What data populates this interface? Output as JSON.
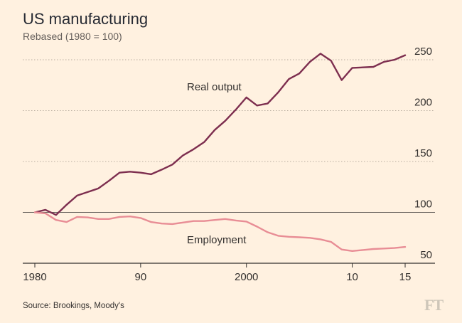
{
  "title": "US manufacturing",
  "subtitle": "Rebased (1980 = 100)",
  "source": "Source: Brookings, Moody's",
  "logo": "FT",
  "colors": {
    "background": "#fff1e0",
    "real_output": "#7d2e4f",
    "employment": "#e88d95",
    "grid": "#b8ad9f",
    "baseline": "#66605c"
  },
  "chart_data": {
    "type": "line",
    "title": "US manufacturing",
    "subtitle": "Rebased (1980 = 100)",
    "xlabel": "",
    "ylabel": "",
    "xlim": [
      1980,
      2015
    ],
    "ylim": [
      50,
      265
    ],
    "yticks": [
      50,
      100,
      150,
      200,
      250
    ],
    "ytick_labels": [
      "50",
      "100",
      "150",
      "200",
      "250"
    ],
    "xticks": [
      1980,
      1990,
      2000,
      2010,
      2015
    ],
    "xtick_labels": [
      "1980",
      "90",
      "2000",
      "10",
      "15"
    ],
    "grid": true,
    "series": [
      {
        "name": "Real output",
        "x": [
          1980,
          1981,
          1982,
          1983,
          1984,
          1985,
          1986,
          1987,
          1988,
          1989,
          1990,
          1991,
          1992,
          1993,
          1994,
          1995,
          1996,
          1997,
          1998,
          1999,
          2000,
          2001,
          2002,
          2003,
          2004,
          2005,
          2006,
          2007,
          2008,
          2009,
          2010,
          2011,
          2012,
          2013,
          2014,
          2015
        ],
        "values": [
          100,
          102.5,
          97.5,
          107.5,
          116.5,
          120,
          123.5,
          131,
          139,
          140,
          139,
          137.5,
          142,
          147,
          156,
          162,
          169,
          181,
          190,
          201,
          213,
          205,
          207,
          218,
          231,
          236.5,
          248,
          256,
          249,
          230,
          242,
          242.5,
          243,
          248,
          250,
          254.5
        ]
      },
      {
        "name": "Employment",
        "x": [
          1980,
          1981,
          1982,
          1983,
          1984,
          1985,
          1986,
          1987,
          1988,
          1989,
          1990,
          1991,
          1992,
          1993,
          1994,
          1995,
          1996,
          1997,
          1998,
          1999,
          2000,
          2001,
          2002,
          2003,
          2004,
          2005,
          2006,
          2007,
          2008,
          2009,
          2010,
          2011,
          2012,
          2013,
          2014,
          2015
        ],
        "values": [
          100,
          99,
          92.5,
          90.5,
          95.5,
          95,
          93.5,
          93.5,
          95.5,
          96,
          94.5,
          90.5,
          89,
          88.5,
          90,
          91.5,
          91.5,
          92.5,
          93.5,
          92,
          91,
          86,
          80.5,
          77,
          76,
          75.5,
          75,
          73.5,
          71,
          63.5,
          62,
          63,
          64,
          64.5,
          65,
          66
        ]
      }
    ]
  }
}
